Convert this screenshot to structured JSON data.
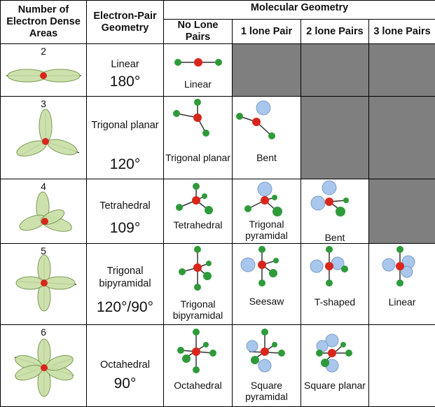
{
  "header": {
    "col_count": "Number of Electron Dense Areas",
    "col_ep": "Electron-Pair Geometry",
    "col_mg": "Molecular Geometry",
    "sub": [
      "No Lone Pairs",
      "1 lone Pair",
      "2 lone Pairs",
      "3 lone Pairs"
    ]
  },
  "rows": [
    {
      "count": "2",
      "ep_name": "Linear",
      "ep_angle": "180°",
      "mg": [
        "Linear",
        "",
        "",
        ""
      ]
    },
    {
      "count": "3",
      "ep_name": "Trigonal planar",
      "ep_angle": "120°",
      "mg": [
        "Trigonal planar",
        "Bent",
        "",
        ""
      ]
    },
    {
      "count": "4",
      "ep_name": "Tetrahedral",
      "ep_angle": "109°",
      "mg": [
        "Tetrahedral",
        "Trigonal pyramidal",
        "Bent",
        ""
      ]
    },
    {
      "count": "5",
      "ep_name": "Trigonal bipyramidal",
      "ep_angle": "120°/90°",
      "mg": [
        "Trigonal bipyramidal",
        "Seesaw",
        "T-shaped",
        "Linear"
      ]
    },
    {
      "count": "6",
      "ep_name": "Octahedral",
      "ep_angle": "90°",
      "mg": [
        "Octahedral",
        "Square pyramidal",
        "Square planar",
        ""
      ]
    }
  ],
  "colors": {
    "lobe_fill": "#c9dea6",
    "lobe_stroke": "#7c9a56",
    "central_atom": "#d9261c",
    "outer_atom": "#2e9a3a",
    "lone_pair": "#a9c6ec",
    "grey_cell": "#7f7f7f"
  }
}
